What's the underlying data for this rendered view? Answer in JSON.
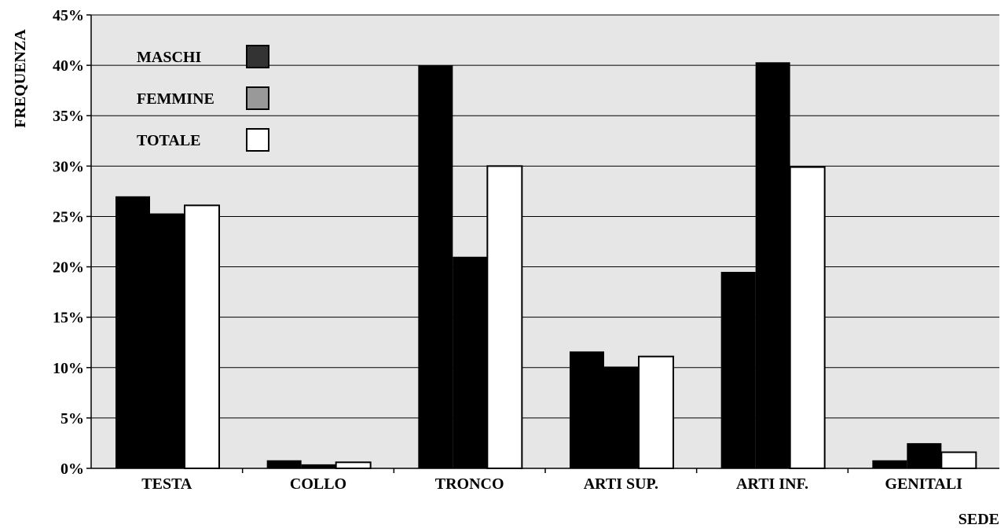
{
  "chart_data": {
    "type": "bar",
    "title": "",
    "xlabel": "SEDE",
    "ylabel": "FREQUENZA",
    "ylim": [
      0,
      45
    ],
    "y_ticks": [
      "0%",
      "5%",
      "10%",
      "15%",
      "20%",
      "25%",
      "30%",
      "35%",
      "40%",
      "45%"
    ],
    "grid": true,
    "legend_position": "top-left",
    "categories": [
      "TESTA",
      "COLLO",
      "TRONCO",
      "ARTI SUP.",
      "ARTI INF.",
      "GENITALI"
    ],
    "series": [
      {
        "name": "MASCHI",
        "color": "#333333",
        "values": [
          27.0,
          0.8,
          40.0,
          11.6,
          19.5,
          0.8
        ]
      },
      {
        "name": "FEMMINE",
        "color": "#999999",
        "values": [
          25.3,
          0.4,
          21.0,
          10.1,
          40.3,
          2.5
        ]
      },
      {
        "name": "TOTALE",
        "color": "#ffffff",
        "values": [
          26.1,
          0.6,
          30.0,
          11.1,
          29.9,
          1.6
        ]
      }
    ]
  }
}
